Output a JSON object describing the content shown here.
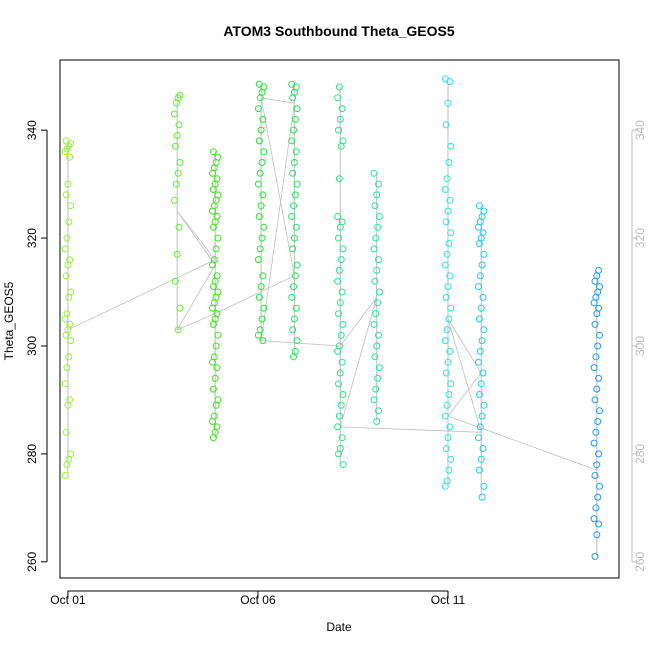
{
  "chart_data": {
    "type": "scatter",
    "title": "ATOM3 Southbound Theta_GEOS5",
    "xlabel": "Date",
    "ylabel": "Theta_GEOS5",
    "xlim": [
      "2016-09-30T19:00",
      "2016-10-15T12:00"
    ],
    "ylim": [
      257,
      353
    ],
    "x_ticks": [
      {
        "date": "2016-10-01T00:00",
        "label": "Oct 01"
      },
      {
        "date": "2016-10-06T00:00",
        "label": "Oct 06"
      },
      {
        "date": "2016-10-11T00:00",
        "label": "Oct 11"
      }
    ],
    "y_ticks": [
      260,
      280,
      300,
      320,
      340
    ],
    "right_y_ticks": [
      260,
      280,
      300,
      320,
      340
    ],
    "grid": false,
    "legend": "none",
    "colors": {
      "connector": "#bfbfbf",
      "axis": "#000000",
      "right_axis": "#bdbdbd"
    },
    "series": [
      {
        "date": "2016-10-01T00:00",
        "ymin": 276,
        "ymax": 338,
        "color": "#96f03a",
        "points": [
          276,
          278,
          279,
          280,
          284,
          289,
          290,
          293,
          296,
          298,
          301,
          302,
          303,
          304,
          305,
          306,
          309,
          310,
          313,
          315,
          316,
          318,
          320,
          323,
          326,
          328,
          330,
          335,
          336,
          336.5,
          337,
          337.5,
          338
        ]
      },
      {
        "date": "2016-10-03T21:00",
        "ymin": 303,
        "ymax": 346.5,
        "color": "#5ef02c",
        "points": [
          303,
          307,
          312,
          317,
          322,
          327,
          330,
          332,
          334,
          337,
          339,
          341,
          343,
          345,
          346,
          346.5
        ]
      },
      {
        "date": "2016-10-04T21:00",
        "ymin": 283,
        "ymax": 336,
        "color": "#3ce41a",
        "points": [
          283,
          284,
          285,
          286,
          287,
          289,
          290,
          292,
          294,
          296,
          297,
          298,
          300,
          302,
          304,
          305,
          306,
          307,
          308,
          309,
          310,
          311,
          312,
          313,
          315,
          316,
          318,
          320,
          322,
          323,
          324,
          325,
          326,
          327,
          328,
          329,
          330,
          331,
          332,
          333,
          334,
          335,
          336
        ]
      },
      {
        "date": "2016-10-06T02:00",
        "ymin": 301,
        "ymax": 348.5,
        "color": "#20e838",
        "points": [
          301,
          302,
          303,
          305,
          307,
          309,
          311,
          313,
          316,
          318,
          320,
          322,
          324,
          326,
          328,
          330,
          332,
          334,
          336,
          338,
          340,
          342,
          344,
          346,
          347,
          348,
          348.5
        ]
      },
      {
        "date": "2016-10-06T23:00",
        "ymin": 298,
        "ymax": 348.5,
        "color": "#1ee85a",
        "points": [
          298,
          299,
          301,
          303,
          305,
          307,
          309,
          311,
          313,
          315,
          318,
          320,
          322,
          324,
          326,
          328,
          330,
          332,
          334,
          336,
          338,
          340,
          342,
          344,
          346,
          347,
          348,
          348.5
        ]
      },
      {
        "date": "2016-10-08T04:00",
        "ymin": 278,
        "ymax": 348,
        "color": "#25e886",
        "points": [
          278,
          280,
          281,
          283,
          285,
          287,
          289,
          291,
          293,
          295,
          297,
          299,
          300,
          302,
          304,
          306,
          308,
          310,
          312,
          314,
          316,
          318,
          320,
          322,
          323,
          324,
          331,
          337,
          338,
          340,
          342,
          344,
          346,
          348
        ]
      },
      {
        "date": "2016-10-09T03:00",
        "ymin": 286,
        "ymax": 332,
        "color": "#22e89a",
        "points": [
          286,
          288,
          290,
          292,
          294,
          296,
          298,
          300,
          302,
          304,
          306,
          308,
          310,
          312,
          314,
          316,
          318,
          320,
          322,
          324,
          326,
          328,
          330,
          332
        ]
      },
      {
        "date": "2016-10-11T00:00",
        "ymin": 274,
        "ymax": 349.5,
        "color": "#28e8d8",
        "points": [
          274,
          275,
          277,
          279,
          281,
          283,
          285,
          287,
          289,
          291,
          293,
          295,
          297,
          299,
          301,
          303,
          305,
          307,
          309,
          311,
          313,
          315,
          317,
          319,
          321,
          323,
          325,
          327,
          329,
          331,
          334,
          337,
          341,
          345,
          349,
          349.5
        ]
      },
      {
        "date": "2016-10-11T21:00",
        "ymin": 272,
        "ymax": 326,
        "color": "#22ccee",
        "points": [
          272,
          274,
          277,
          279,
          281,
          283,
          285,
          287,
          289,
          291,
          293,
          295,
          297,
          299,
          301,
          303,
          305,
          307,
          309,
          311,
          313,
          315,
          317,
          319,
          320,
          321,
          322,
          323,
          324,
          325,
          326
        ]
      },
      {
        "date": "2016-10-14T22:00",
        "ymin": 261,
        "ymax": 314,
        "color": "#1e9cec",
        "points": [
          261,
          265,
          267,
          268,
          270,
          272,
          274,
          276,
          278,
          280,
          282,
          284,
          286,
          288,
          290,
          292,
          294,
          296,
          298,
          300,
          302,
          304,
          306,
          307,
          308,
          309,
          310,
          311,
          312,
          313,
          314
        ]
      }
    ],
    "connector_path": [
      {
        "date": "2016-10-01T00:00",
        "y": 303
      },
      {
        "date": "2016-10-04T21:00",
        "y": 316
      },
      {
        "date": "2016-10-03T21:00",
        "y": 325
      },
      {
        "date": "2016-10-04T21:00",
        "y": 315
      },
      {
        "date": "2016-10-03T21:00",
        "y": 303
      },
      {
        "date": "2016-10-04T21:00",
        "y": 306
      },
      {
        "date": "2016-10-06T23:00",
        "y": 313
      },
      {
        "date": "2016-10-06T02:00",
        "y": 346
      },
      {
        "date": "2016-10-06T23:00",
        "y": 345
      },
      {
        "date": "2016-10-06T02:00",
        "y": 301
      },
      {
        "date": "2016-10-08T04:00",
        "y": 300
      },
      {
        "date": "2016-10-09T03:00",
        "y": 309
      },
      {
        "date": "2016-10-08T04:00",
        "y": 285
      },
      {
        "date": "2016-10-11T21:00",
        "y": 284
      },
      {
        "date": "2016-10-11T00:00",
        "y": 305
      },
      {
        "date": "2016-10-11T21:00",
        "y": 295
      },
      {
        "date": "2016-10-11T00:00",
        "y": 287
      },
      {
        "date": "2016-10-14T22:00",
        "y": 277
      }
    ]
  }
}
